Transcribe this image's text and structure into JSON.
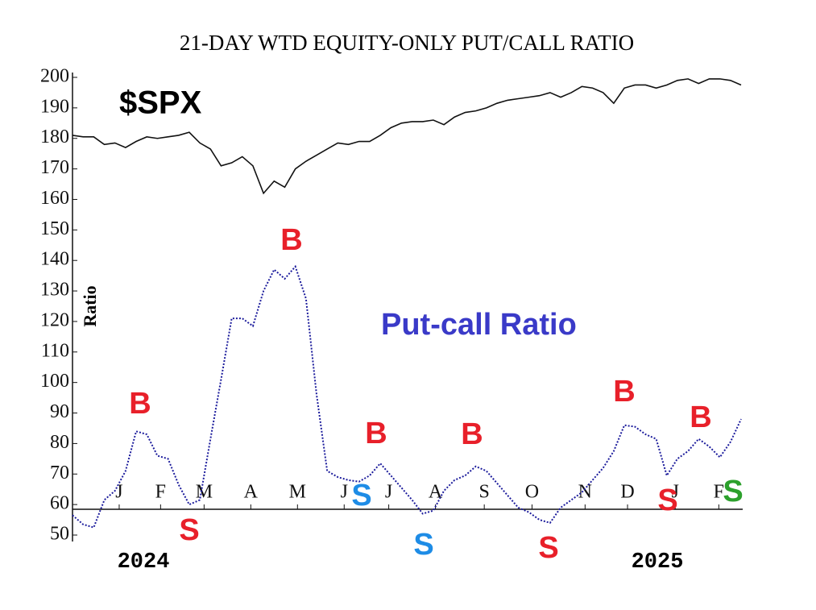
{
  "chart_data": {
    "type": "line",
    "title": "21-DAY WTD EQUITY-ONLY PUT/CALL RATIO",
    "y_label": "Ratio",
    "series_labels": [
      "$SPX",
      "Put-call Ratio"
    ],
    "x": [
      0,
      1,
      2,
      3,
      4,
      5,
      6,
      7,
      8,
      9,
      10,
      11,
      12,
      13,
      14,
      15,
      16,
      17,
      18,
      19,
      20,
      21,
      22,
      23,
      24,
      25,
      26,
      27,
      28,
      29,
      30,
      31,
      32,
      33,
      34,
      35,
      36,
      37,
      38,
      39,
      40,
      41,
      42,
      43,
      44,
      45,
      46,
      47,
      48,
      49,
      50,
      51,
      52,
      53,
      54,
      55,
      56,
      57,
      58,
      59,
      60,
      61,
      62,
      63
    ],
    "series": [
      {
        "name": "$SPX",
        "color": "#111111",
        "values": [
          181,
          180.5,
          180.5,
          178,
          178.5,
          177,
          179,
          180.5,
          180,
          180.5,
          181,
          182,
          178.5,
          176.5,
          171,
          172,
          174,
          171,
          162,
          166,
          164,
          170,
          172.5,
          174.5,
          176.5,
          178.5,
          178,
          179,
          179,
          181,
          183.5,
          185,
          185.5,
          185.5,
          186,
          184.5,
          187,
          188.5,
          189,
          190,
          191.5,
          192.5,
          193,
          193.5,
          194,
          195,
          193.5,
          195,
          197,
          196.5,
          195,
          191.5,
          196.5,
          197.5,
          197.5,
          196.5,
          197.5,
          199,
          199.5,
          198,
          199.5,
          199.5,
          199,
          197.5
        ]
      },
      {
        "name": "Put-call Ratio",
        "color": "#1c1c9c",
        "values": [
          56.5,
          53.5,
          52.5,
          61.5,
          64.5,
          71,
          84,
          83,
          76,
          75,
          66.5,
          60,
          61.5,
          81.5,
          101,
          121,
          121,
          118.5,
          130,
          137,
          134,
          138,
          127.5,
          96,
          71,
          69,
          68,
          67.5,
          69.5,
          73.5,
          69.5,
          65.5,
          61.5,
          57,
          58,
          64.5,
          68,
          69.5,
          72.5,
          71,
          67,
          63,
          59,
          57.5,
          55,
          54,
          59,
          61.5,
          64,
          68,
          72,
          77.5,
          86,
          85.5,
          83,
          81.5,
          69.5,
          75,
          77.5,
          81.5,
          79,
          75.5,
          80.5,
          88
        ]
      }
    ],
    "xlim": [
      0,
      63
    ],
    "xticks": [
      {
        "value": 4.4,
        "label": "J"
      },
      {
        "value": 8.3,
        "label": "F"
      },
      {
        "value": 12.4,
        "label": "M"
      },
      {
        "value": 16.8,
        "label": "A"
      },
      {
        "value": 21.2,
        "label": "M"
      },
      {
        "value": 25.6,
        "label": "J"
      },
      {
        "value": 29.8,
        "label": "J"
      },
      {
        "value": 34.2,
        "label": "A"
      },
      {
        "value": 38.8,
        "label": "S"
      },
      {
        "value": 43.3,
        "label": "O"
      },
      {
        "value": 48.3,
        "label": "N"
      },
      {
        "value": 52.3,
        "label": "D"
      },
      {
        "value": 56.8,
        "label": "J"
      },
      {
        "value": 60.9,
        "label": "F"
      }
    ],
    "years": [
      "2024",
      "2025"
    ],
    "ylim": [
      50,
      200
    ],
    "yticks": [
      50,
      60,
      70,
      80,
      90,
      100,
      110,
      120,
      130,
      140,
      150,
      160,
      170,
      180,
      190,
      200
    ],
    "annotations": [
      {
        "text": "B",
        "color": "#e8202a"
      },
      {
        "text": "S",
        "color": "#e8202a"
      },
      {
        "text": "B",
        "color": "#e8202a"
      },
      {
        "text": "S",
        "color": "#1e8ce6"
      },
      {
        "text": "B",
        "color": "#e8202a"
      },
      {
        "text": "S",
        "color": "#1e8ce6"
      },
      {
        "text": "B",
        "color": "#e8202a"
      },
      {
        "text": "S",
        "color": "#e8202a"
      },
      {
        "text": "B",
        "color": "#e8202a"
      },
      {
        "text": "S",
        "color": "#e8202a"
      },
      {
        "text": "B",
        "color": "#e8202a"
      },
      {
        "text": "S",
        "color": "#2ca02c"
      }
    ]
  }
}
